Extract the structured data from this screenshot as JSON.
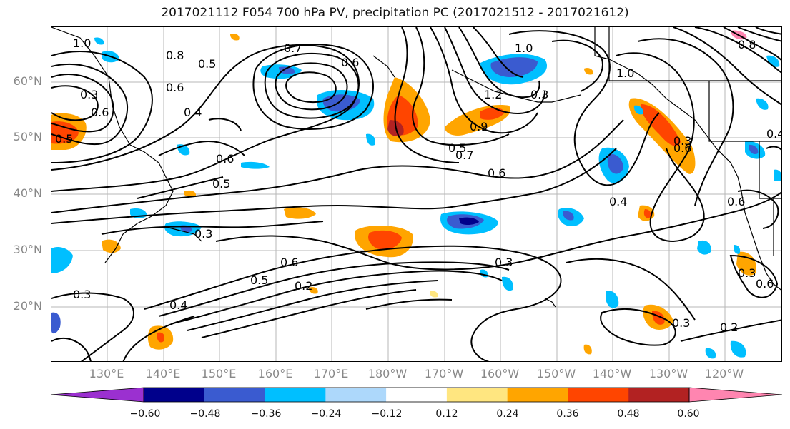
{
  "title": "2017021112 F054 700 hPa PV, precipitation PC (2017021512 - 2017021612)",
  "lat_labels": [
    "60°N",
    "50°N",
    "40°N",
    "30°N",
    "20°N"
  ],
  "lon_labels": [
    "130°E",
    "140°E",
    "150°E",
    "160°E",
    "170°E",
    "180°W",
    "170°W",
    "160°W",
    "150°W",
    "140°W",
    "130°W",
    "120°W"
  ],
  "colorbar": {
    "ticks": [
      "−0.60",
      "−0.48",
      "−0.36",
      "−0.24",
      "−0.12",
      "0.12",
      "0.24",
      "0.36",
      "0.48",
      "0.60"
    ],
    "colors": [
      "#9b30d0",
      "#00008b",
      "#3a5bd0",
      "#00bfff",
      "#add8fb",
      "#ffffff",
      "#ffe680",
      "#ffa500",
      "#ff4500",
      "#b22222",
      "#ff85b0"
    ]
  },
  "contour_labels": [
    "1.0",
    "0.8",
    "0.5",
    "0.7",
    "0.3",
    "0.6",
    "0.4",
    "0.5",
    "1.0",
    "1.2",
    "0.3",
    "0.9",
    "0.5",
    "0.5",
    "0.7",
    "0.6",
    "0.6",
    "0.3",
    "0.5",
    "0.4",
    "0.6",
    "0.2",
    "0.3",
    "0.3",
    "0.2",
    "0.6",
    "0.6",
    "0.4",
    "0.3",
    "1.0",
    "0.8",
    "0.3",
    "0.4",
    "0.6",
    "0.6",
    "0.3",
    "0.6"
  ]
}
